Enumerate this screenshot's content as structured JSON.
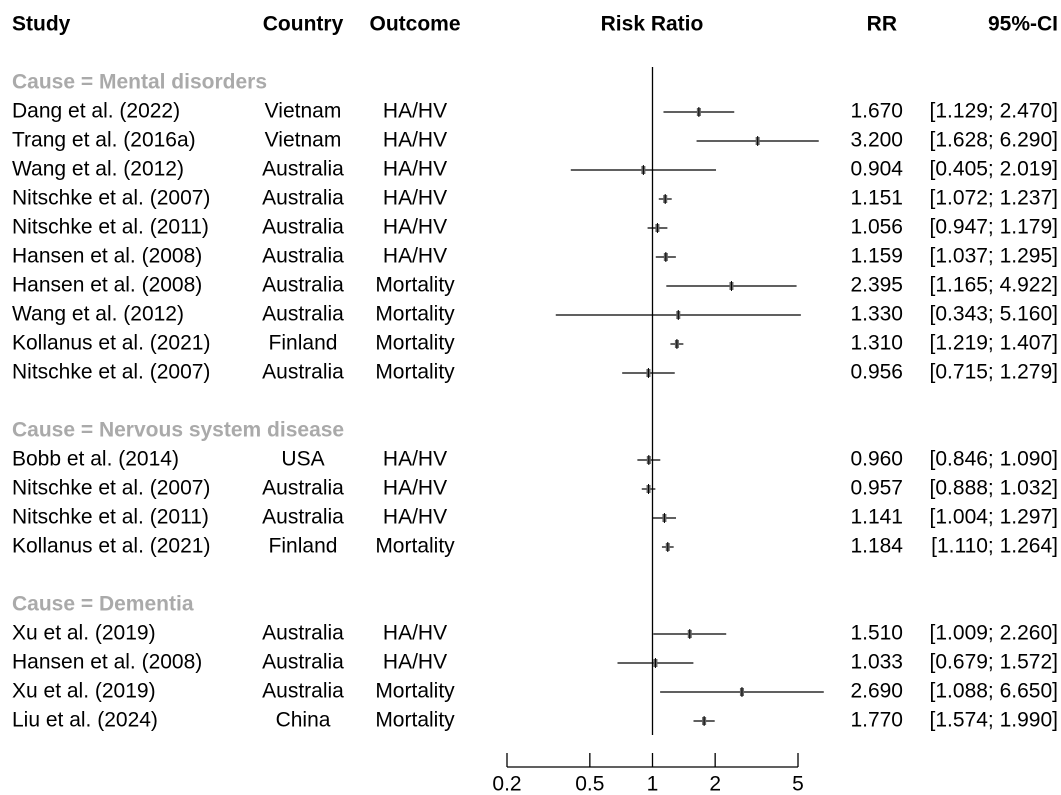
{
  "chart_data": {
    "type": "forest",
    "columns": {
      "study": "Study",
      "country": "Country",
      "outcome": "Outcome",
      "plot": "Risk Ratio",
      "rr": "RR",
      "ci": "95%-CI"
    },
    "log_x": true,
    "xlim": [
      0.2,
      5
    ],
    "xticks": [
      0.2,
      0.5,
      1,
      2,
      5
    ],
    "reference": 1,
    "groups": [
      {
        "label": "Cause = Mental disorders",
        "rows": [
          {
            "study": "Dang et al. (2022)",
            "country": "Vietnam",
            "outcome": "HA/HV",
            "rr": 1.67,
            "rr_label": "1.670",
            "lower": 1.129,
            "upper": 2.47,
            "ci_label": "[1.129; 2.470]"
          },
          {
            "study": "Trang et al. (2016a)",
            "country": "Vietnam",
            "outcome": "HA/HV",
            "rr": 3.2,
            "rr_label": "3.200",
            "lower": 1.628,
            "upper": 6.29,
            "ci_label": "[1.628; 6.290]"
          },
          {
            "study": "Wang et al. (2012)",
            "country": "Australia",
            "outcome": "HA/HV",
            "rr": 0.904,
            "rr_label": "0.904",
            "lower": 0.405,
            "upper": 2.019,
            "ci_label": "[0.405; 2.019]"
          },
          {
            "study": "Nitschke et al. (2007)",
            "country": "Australia",
            "outcome": "HA/HV",
            "rr": 1.151,
            "rr_label": "1.151",
            "lower": 1.072,
            "upper": 1.237,
            "ci_label": "[1.072; 1.237]"
          },
          {
            "study": "Nitschke et al. (2011)",
            "country": "Australia",
            "outcome": "HA/HV",
            "rr": 1.056,
            "rr_label": "1.056",
            "lower": 0.947,
            "upper": 1.179,
            "ci_label": "[0.947; 1.179]"
          },
          {
            "study": "Hansen et al. (2008)",
            "country": "Australia",
            "outcome": "HA/HV",
            "rr": 1.159,
            "rr_label": "1.159",
            "lower": 1.037,
            "upper": 1.295,
            "ci_label": "[1.037; 1.295]"
          },
          {
            "study": "Hansen et al. (2008)",
            "country": "Australia",
            "outcome": "Mortality",
            "rr": 2.395,
            "rr_label": "2.395",
            "lower": 1.165,
            "upper": 4.922,
            "ci_label": "[1.165; 4.922]"
          },
          {
            "study": "Wang et al. (2012)",
            "country": "Australia",
            "outcome": "Mortality",
            "rr": 1.33,
            "rr_label": "1.330",
            "lower": 0.343,
            "upper": 5.16,
            "ci_label": "[0.343; 5.160]"
          },
          {
            "study": "Kollanus et al. (2021)",
            "country": "Finland",
            "outcome": "Mortality",
            "rr": 1.31,
            "rr_label": "1.310",
            "lower": 1.219,
            "upper": 1.407,
            "ci_label": "[1.219; 1.407]"
          },
          {
            "study": "Nitschke et al. (2007)",
            "country": "Australia",
            "outcome": "Mortality",
            "rr": 0.956,
            "rr_label": "0.956",
            "lower": 0.715,
            "upper": 1.279,
            "ci_label": "[0.715; 1.279]"
          }
        ]
      },
      {
        "label": "Cause = Nervous system disease",
        "rows": [
          {
            "study": "Bobb et al. (2014)",
            "country": "USA",
            "outcome": "HA/HV",
            "rr": 0.96,
            "rr_label": "0.960",
            "lower": 0.846,
            "upper": 1.09,
            "ci_label": "[0.846; 1.090]"
          },
          {
            "study": "Nitschke et al. (2007)",
            "country": "Australia",
            "outcome": "HA/HV",
            "rr": 0.957,
            "rr_label": "0.957",
            "lower": 0.888,
            "upper": 1.032,
            "ci_label": "[0.888; 1.032]"
          },
          {
            "study": "Nitschke et al. (2011)",
            "country": "Australia",
            "outcome": "HA/HV",
            "rr": 1.141,
            "rr_label": "1.141",
            "lower": 1.004,
            "upper": 1.297,
            "ci_label": "[1.004; 1.297]"
          },
          {
            "study": "Kollanus et al. (2021)",
            "country": "Finland",
            "outcome": "Mortality",
            "rr": 1.184,
            "rr_label": "1.184",
            "lower": 1.11,
            "upper": 1.264,
            "ci_label": "[1.110; 1.264]"
          }
        ]
      },
      {
        "label": "Cause = Dementia",
        "rows": [
          {
            "study": "Xu et al. (2019)",
            "country": "Australia",
            "outcome": "HA/HV",
            "rr": 1.51,
            "rr_label": "1.510",
            "lower": 1.009,
            "upper": 2.26,
            "ci_label": "[1.009; 2.260]"
          },
          {
            "study": "Hansen et al. (2008)",
            "country": "Australia",
            "outcome": "HA/HV",
            "rr": 1.033,
            "rr_label": "1.033",
            "lower": 0.679,
            "upper": 1.572,
            "ci_label": "[0.679; 1.572]"
          },
          {
            "study": "Xu et al. (2019)",
            "country": "Australia",
            "outcome": "Mortality",
            "rr": 2.69,
            "rr_label": "2.690",
            "lower": 1.088,
            "upper": 6.65,
            "ci_label": "[1.088; 6.650]"
          },
          {
            "study": "Liu et al. (2024)",
            "country": "China",
            "outcome": "Mortality",
            "rr": 1.77,
            "rr_label": "1.770",
            "lower": 1.574,
            "upper": 1.99,
            "ci_label": "[1.574; 1.990]"
          }
        ]
      }
    ]
  }
}
